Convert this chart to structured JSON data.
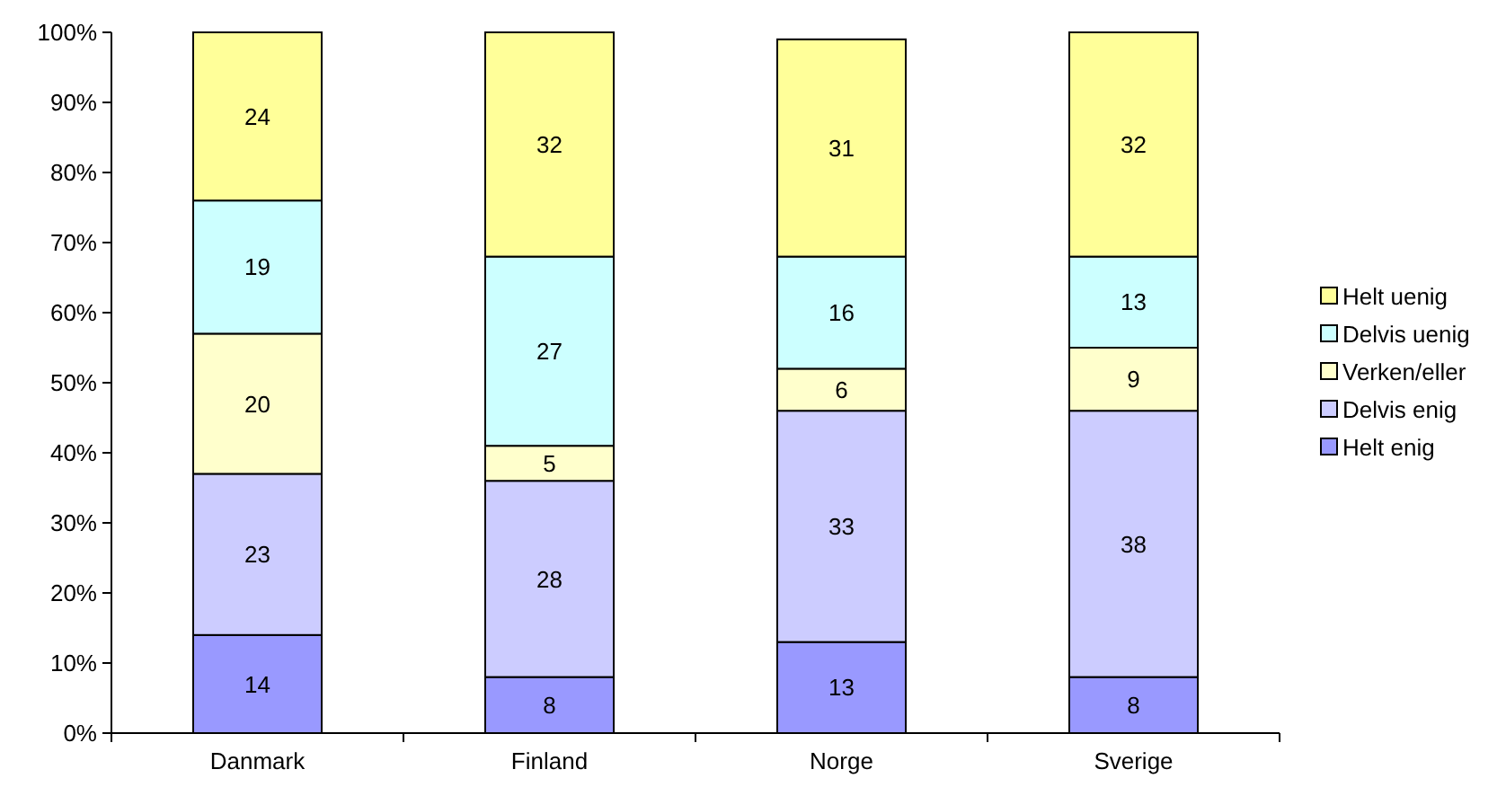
{
  "chart_data": {
    "type": "bar",
    "stacked": true,
    "data_labels": true,
    "legend": "right",
    "grid": false,
    "categories": [
      "Danmark",
      "Finland",
      "Norge",
      "Sverige"
    ],
    "ylim": [
      0,
      100
    ],
    "yticks": [
      {
        "value": 0,
        "label": "0%"
      },
      {
        "value": 10,
        "label": "10%"
      },
      {
        "value": 20,
        "label": "20%"
      },
      {
        "value": 30,
        "label": "30%"
      },
      {
        "value": 40,
        "label": "40%"
      },
      {
        "value": 50,
        "label": "50%"
      },
      {
        "value": 60,
        "label": "60%"
      },
      {
        "value": 70,
        "label": "70%"
      },
      {
        "value": 80,
        "label": "80%"
      },
      {
        "value": 90,
        "label": "90%"
      },
      {
        "value": 100,
        "label": "100%"
      }
    ],
    "series": [
      {
        "name": "Helt enig",
        "color": "#9999ff",
        "values": [
          14,
          8,
          13,
          8
        ]
      },
      {
        "name": "Delvis enig",
        "color": "#ccccff",
        "values": [
          23,
          28,
          33,
          38
        ]
      },
      {
        "name": "Verken/eller",
        "color": "#ffffcc",
        "values": [
          20,
          5,
          6,
          9
        ]
      },
      {
        "name": "Delvis uenig",
        "color": "#ccffff",
        "values": [
          19,
          27,
          16,
          13
        ]
      },
      {
        "name": "Helt uenig",
        "color": "#ffff99",
        "values": [
          24,
          32,
          31,
          32
        ]
      }
    ]
  }
}
